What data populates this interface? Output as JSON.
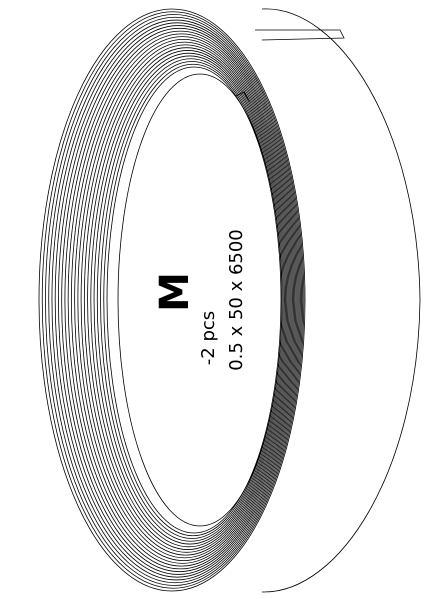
{
  "label": {
    "size": "M",
    "quantity": "-2 pcs",
    "dimensions": "0.5 x 50 x 6500"
  }
}
